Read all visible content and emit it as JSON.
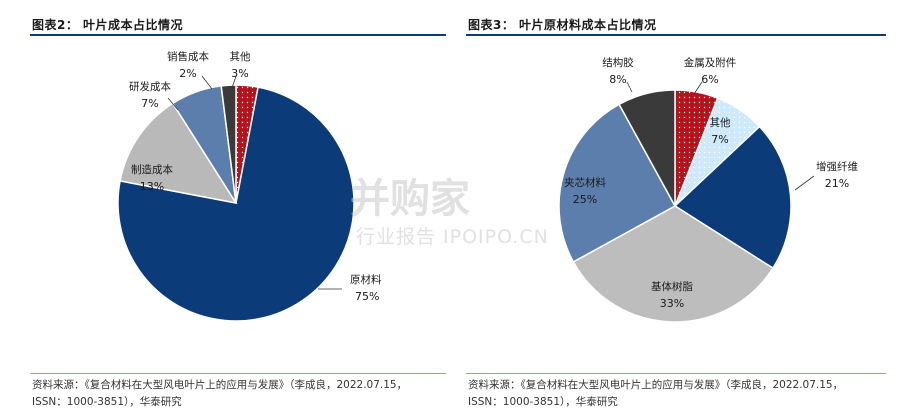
{
  "chart_data": [
    {
      "type": "pie",
      "title": "图表2： 叶片成本占比情况",
      "slices": [
        {
          "label": "原材料",
          "value": 75,
          "display": "75%",
          "color": "#0b3b78"
        },
        {
          "label": "制造成本",
          "value": 13,
          "display": "13%",
          "color": "#b9b9b9"
        },
        {
          "label": "研发成本",
          "value": 7,
          "display": "7%",
          "color": "#5b7ead"
        },
        {
          "label": "销售成本",
          "value": 2,
          "display": "2%",
          "color": "#3a3a3a"
        },
        {
          "label": "其他",
          "value": 3,
          "display": "3%",
          "color": "#b5121b",
          "pattern": "dots"
        }
      ],
      "source": [
        "资料来源：《复合材料在大型风电叶片上的应用与发展》（李成良，2022.07.15，",
        "ISSN：1000-3851），华泰研究"
      ]
    },
    {
      "type": "pie",
      "title": "图表3： 叶片原材料成本占比情况",
      "slices": [
        {
          "label": "增强纤维",
          "value": 21,
          "display": "21%",
          "color": "#0b3b78"
        },
        {
          "label": "基体树脂",
          "value": 33,
          "display": "33%",
          "color": "#bdbdbd"
        },
        {
          "label": "夹芯材料",
          "value": 25,
          "display": "25%",
          "color": "#5b7ead"
        },
        {
          "label": "结构胶",
          "value": 8,
          "display": "8%",
          "color": "#3a3a3a"
        },
        {
          "label": "金属及附件",
          "value": 6,
          "display": "6%",
          "color": "#b5121b",
          "pattern": "dots"
        },
        {
          "label": "其他",
          "value": 7,
          "display": "7%",
          "color": "#cde9fb",
          "pattern": "dots"
        }
      ],
      "source": [
        "资料来源：《复合材料在大型风电叶片上的应用与发展》（李成良，2022.07.15，",
        "ISSN：1000-3851），华泰研究"
      ]
    }
  ],
  "watermark": {
    "main": "并购家",
    "sub": "行业报告 IPOIPO.CN"
  }
}
